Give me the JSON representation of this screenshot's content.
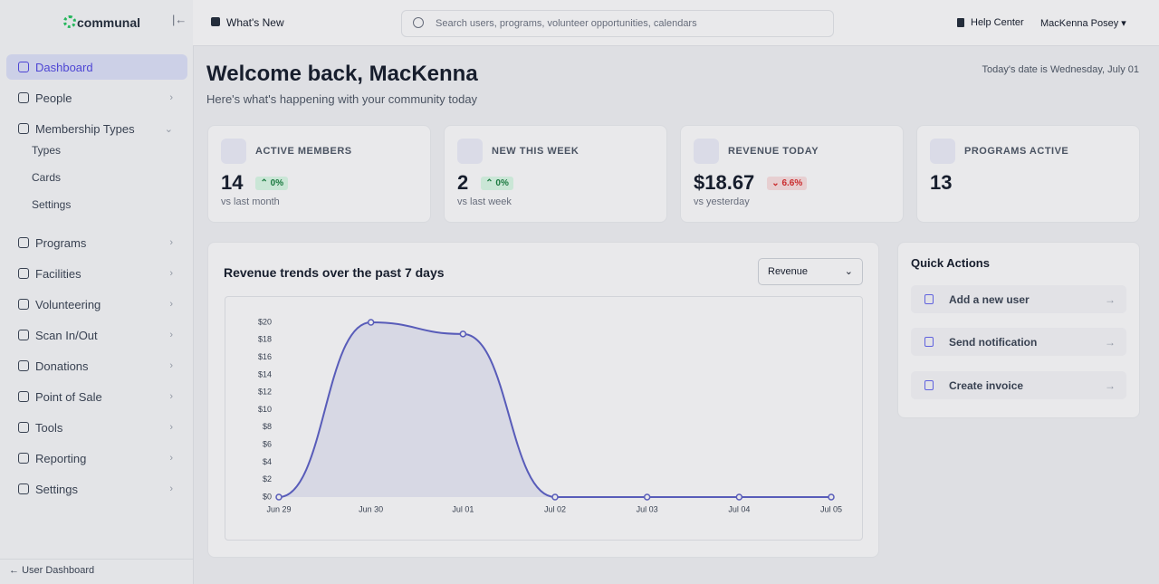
{
  "sidebar": {
    "logo": "communal",
    "nav": [
      {
        "label": "Dashboard"
      },
      {
        "label": "People"
      },
      {
        "label": "Membership Types",
        "children": [
          "Types",
          "Cards",
          "Settings"
        ]
      },
      {
        "label": "Programs"
      },
      {
        "label": "Facilities"
      },
      {
        "label": "Volunteering"
      },
      {
        "label": "Scan In/Out"
      },
      {
        "label": "Donations"
      },
      {
        "label": "Point of Sale"
      },
      {
        "label": "Tools"
      },
      {
        "label": "Reporting"
      },
      {
        "label": "Settings"
      }
    ],
    "footer": "User Dashboard"
  },
  "topbar": {
    "whats_new": "What's New",
    "search_placeholder": "Search users, programs, volunteer opportunities, calendars",
    "help": "Help Center",
    "user": "MacKenna Posey"
  },
  "header": {
    "title": "Welcome back, MacKenna",
    "subtitle": "Here's what's happening with your community today",
    "date": "Today's date is Wednesday, July 01"
  },
  "stats": [
    {
      "label": "ACTIVE MEMBERS",
      "value": "14",
      "change": "0%",
      "note": "vs last month"
    },
    {
      "label": "NEW THIS WEEK",
      "value": "2",
      "change": "0%",
      "note": "vs last week"
    },
    {
      "label": "REVENUE TODAY",
      "value": "$18.67",
      "change": "6.6%",
      "note": "vs yesterday"
    },
    {
      "label": "PROGRAMS ACTIVE",
      "value": "13"
    }
  ],
  "chart_data": {
    "type": "line",
    "title": "Revenue trends over the past 7 days",
    "selector": "Revenue",
    "categories": [
      "Jun 29",
      "Jun 30",
      "Jul 01",
      "Jul 02",
      "Jul 03",
      "Jul 04",
      "Jul 05"
    ],
    "values": [
      0,
      20,
      18.67,
      0,
      0,
      0,
      0
    ],
    "color": "#5b5fc7",
    "ylim": [
      0,
      20
    ],
    "yticks": [
      {
        "value": 0,
        "label": "$0"
      },
      {
        "value": 2,
        "label": "$2"
      },
      {
        "value": 4,
        "label": "$4"
      },
      {
        "value": 6,
        "label": "$6"
      },
      {
        "value": 8,
        "label": "$8"
      },
      {
        "value": 10,
        "label": "$10"
      },
      {
        "value": 12,
        "label": "$12"
      },
      {
        "value": 14,
        "label": "$14"
      },
      {
        "value": 16,
        "label": "$16"
      },
      {
        "value": 18,
        "label": "$18"
      },
      {
        "value": 20,
        "label": "$20"
      }
    ]
  },
  "quick_actions": {
    "title": "Quick Actions",
    "items": [
      "Add a new user",
      "Send notification",
      "Create invoice"
    ]
  }
}
